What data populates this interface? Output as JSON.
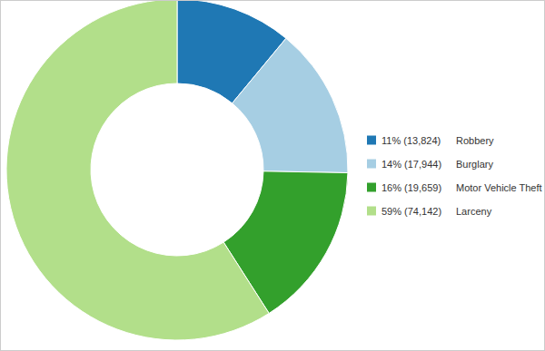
{
  "chart_data": {
    "type": "pie",
    "categories": [
      "Robbery",
      "Burglary",
      "Motor Vehicle Theft",
      "Larceny"
    ],
    "values": [
      13824,
      17944,
      19659,
      74142
    ],
    "value_labels": [
      "11% (13,824)",
      "14% (17,944)",
      "16% (19,659)",
      "59% (74,142)"
    ],
    "colors": [
      "#1f78b4",
      "#a6cee3",
      "#33a02c",
      "#b2df8a"
    ],
    "legend": "right"
  }
}
